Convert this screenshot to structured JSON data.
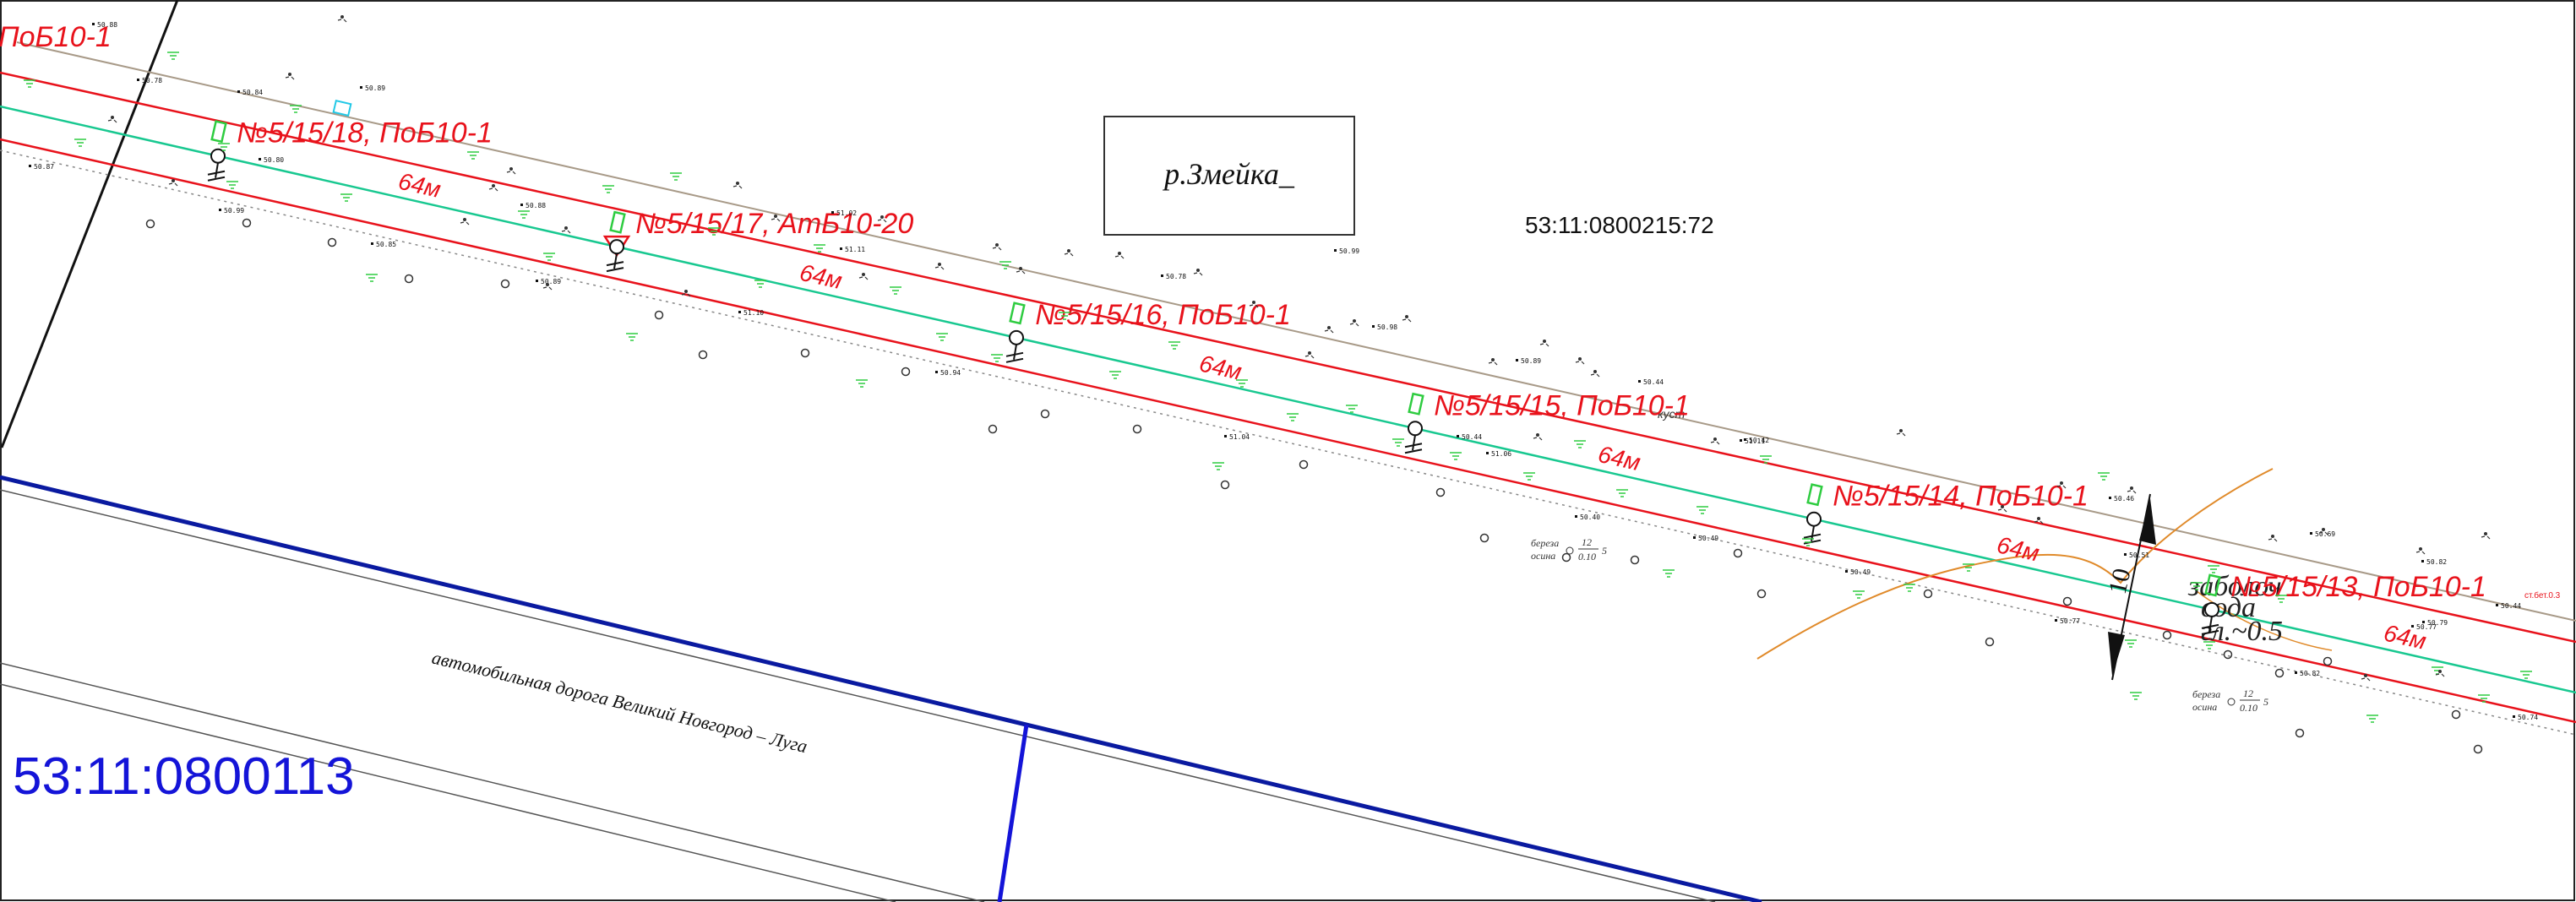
{
  "map": {
    "title": "",
    "colors": {
      "power_line": "#e8121b",
      "axis_line": "#18c890",
      "parcel_boundary": "#0a1aa0",
      "road_edge": "#555555",
      "contour": "#e08a2a",
      "fence": "#a09080",
      "grass": "#2ecc40",
      "pole_symbol": "#2ecc40"
    },
    "poles": [
      {
        "label": "№5/15/18, ПоБ10-1",
        "icon": "pole-icon"
      },
      {
        "label": "№5/15/17, АтБ10-20",
        "icon": "anchor-pole-icon"
      },
      {
        "label": "№5/15/16, ПоБ10-1",
        "icon": "pole-icon"
      },
      {
        "label": "№5/15/15, ПоБ10-1",
        "icon": "pole-icon"
      },
      {
        "label": "№5/15/14, ПоБ10-1",
        "icon": "pole-icon"
      },
      {
        "label": "№5/15/13, ПоБ10-1",
        "icon": "pole-icon"
      }
    ],
    "edge_label": "ПоБ10-1",
    "span_labels": [
      "64м",
      "64м",
      "64м",
      "64м",
      "64м",
      "64м"
    ],
    "river_label": "р.Змейка_",
    "parcel_label_north": "53:11:0800215:72",
    "parcel_label_south": "53:11:0800113",
    "road_label": "автомобильная дорога Великий Новгород – Луга",
    "dimension_label": "10",
    "swamp_label_1": "заболоч",
    "swamp_label_2": "вода",
    "water_level": "гл.~0.5",
    "tree_notes": [
      {
        "species_1": "береза",
        "species_2": "осина",
        "num": "12",
        "den": "0.10",
        "suffix": "5"
      },
      {
        "species_1": "береза",
        "species_2": "осина",
        "num": "12",
        "den": "0.10",
        "suffix": "5"
      }
    ],
    "marker_note": "ст.бет.0.3",
    "kust_note": "куст",
    "elevations": [
      "50.88",
      "50.78",
      "50.84",
      "50.89",
      "50.87",
      "50.80",
      "50.99",
      "50.88",
      "50.85",
      "50.89",
      "51.02",
      "51.11",
      "51.10",
      "50.78",
      "50.94",
      "50.99",
      "51.04",
      "50.89",
      "50.44",
      "51.06",
      "50.42",
      "50.98",
      "50.44",
      "50.40",
      "50.49",
      "50.49",
      "51.11",
      "50.46",
      "50.51",
      "50.77",
      "50.69",
      "50.82",
      "50.79",
      "50.44",
      "50.82",
      "50.74",
      "50.77"
    ]
  }
}
